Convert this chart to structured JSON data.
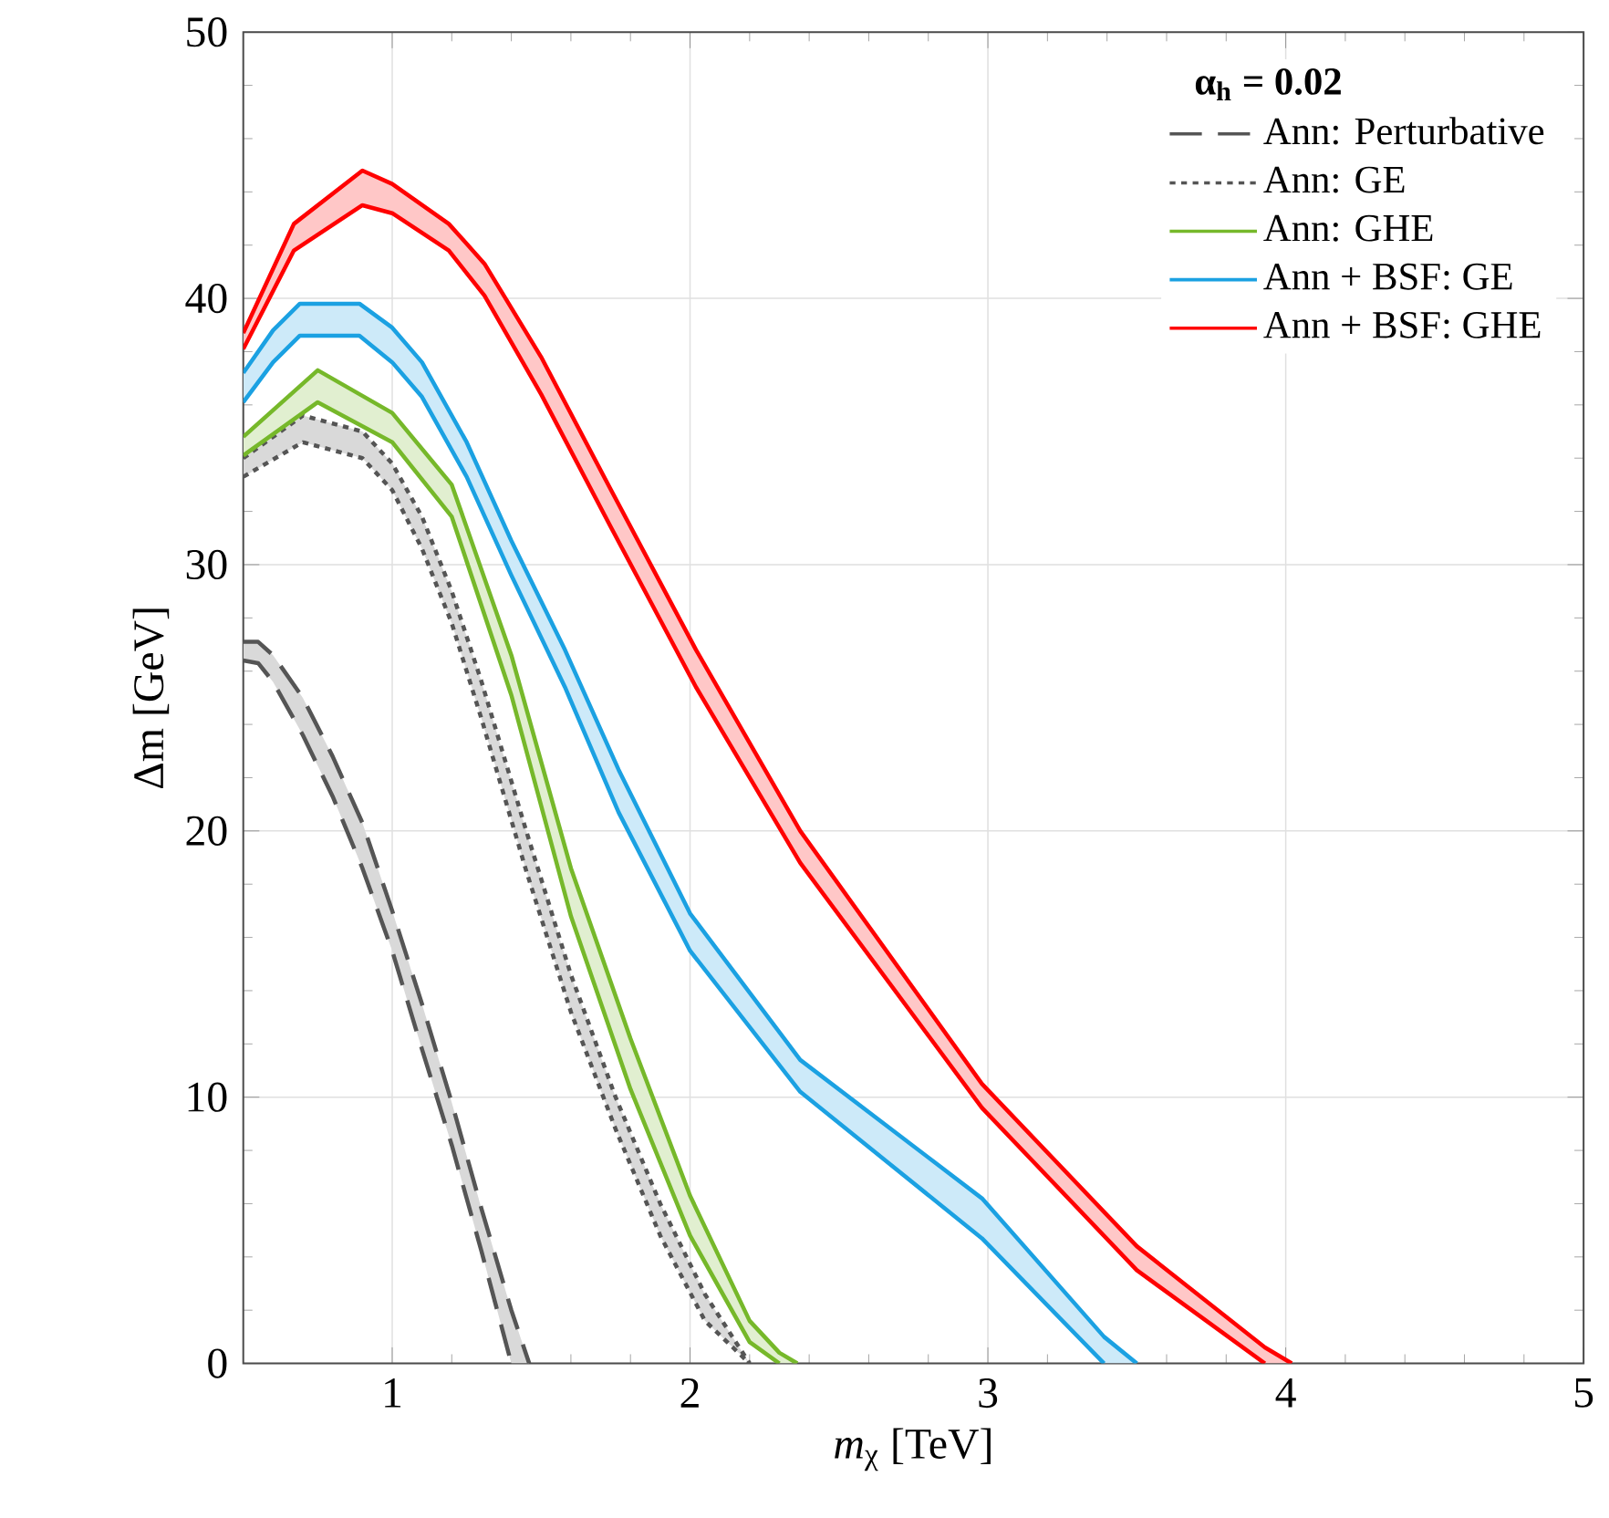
{
  "chart_data": {
    "type": "line",
    "xlabel": "*m*$_{χ}$  [TeV]",
    "ylabel": "Δm  [GeV]",
    "legend_title": "α$_{h}$ = 0.02",
    "xlim": [
      0.5,
      5
    ],
    "ylim": [
      0,
      50
    ],
    "xticks": [
      1,
      2,
      3,
      4,
      5
    ],
    "yticks": [
      0,
      10,
      20,
      30,
      40,
      50
    ],
    "grid": true,
    "legend": "top right",
    "series": [
      {
        "name": "Ann: Perturbative",
        "color": "#555555",
        "line_style": "dashed",
        "x": [
          0.5,
          0.55,
          0.6,
          0.7,
          0.8,
          0.9,
          1.0,
          1.1,
          1.2,
          1.3,
          1.4,
          1.46
        ],
        "values": [
          27.1,
          27.1,
          26.6,
          25.0,
          22.8,
          20.3,
          17.0,
          13.5,
          9.8,
          5.8,
          2.0,
          0
        ],
        "upper": [
          27.1,
          27.1,
          26.6,
          25.0,
          22.8,
          20.3,
          17.0,
          13.5,
          9.8,
          5.8,
          2.0,
          0
        ],
        "lower": [
          26.4,
          26.3,
          25.6,
          23.6,
          21.3,
          18.6,
          15.5,
          11.8,
          8.2,
          4.2,
          0,
          0
        ]
      },
      {
        "color": "#555555",
        "line_style": "dashed",
        "x": [
          0.5,
          0.55,
          0.6,
          0.7,
          0.8,
          0.9,
          1.0,
          1.1,
          1.2,
          1.3,
          1.4
        ],
        "values": [
          26.4,
          26.3,
          25.6,
          23.6,
          21.3,
          18.6,
          15.5,
          11.8,
          8.2,
          4.2,
          0
        ]
      },
      {
        "name": "Ann: GE",
        "color": "#555555",
        "line_style": "dotted",
        "x": [
          0.5,
          0.7,
          0.9,
          1.0,
          1.1,
          1.2,
          1.3,
          1.45,
          1.6,
          1.75,
          1.9,
          2.05,
          2.2
        ],
        "values": [
          34.0,
          35.6,
          35.0,
          33.8,
          31.8,
          29.0,
          25.6,
          20.0,
          14.6,
          10.0,
          6.0,
          2.6,
          0
        ],
        "upper": [
          34.0,
          35.6,
          35.0,
          33.8,
          31.8,
          29.0,
          25.6,
          20.0,
          14.6,
          10.0,
          6.0,
          2.6,
          0
        ],
        "lower": [
          33.3,
          34.6,
          34.0,
          32.8,
          30.6,
          27.8,
          24.2,
          18.5,
          13.2,
          8.8,
          4.8,
          1.6,
          0
        ]
      },
      {
        "color": "#555555",
        "line_style": "dotted",
        "x": [
          0.5,
          0.7,
          0.9,
          1.0,
          1.1,
          1.2,
          1.3,
          1.45,
          1.6,
          1.75,
          1.9,
          2.05,
          2.2
        ],
        "values": [
          33.3,
          34.6,
          34.0,
          32.8,
          30.6,
          27.8,
          24.2,
          18.5,
          13.2,
          8.8,
          4.8,
          1.6,
          0
        ]
      },
      {
        "name": "Ann: GHE",
        "color": "#76b82a",
        "line_style": "solid",
        "x": [
          0.5,
          0.75,
          1.0,
          1.2,
          1.4,
          1.6,
          1.8,
          2.0,
          2.2,
          2.3,
          2.36
        ],
        "values": [
          34.8,
          37.3,
          35.7,
          33.0,
          26.6,
          18.6,
          12.2,
          6.3,
          1.6,
          0.4,
          0
        ],
        "upper": [
          34.8,
          37.3,
          35.7,
          33.0,
          26.6,
          18.6,
          12.2,
          6.3,
          1.6,
          0.4,
          0
        ],
        "lower": [
          34.1,
          36.1,
          34.6,
          31.8,
          25.1,
          16.8,
          10.3,
          4.8,
          0.8,
          0,
          0
        ]
      },
      {
        "color": "#76b82a",
        "line_style": "solid",
        "x": [
          0.5,
          0.75,
          1.0,
          1.2,
          1.4,
          1.6,
          1.8,
          2.0,
          2.2,
          2.3
        ],
        "values": [
          34.1,
          36.1,
          34.6,
          31.8,
          25.1,
          16.8,
          10.3,
          4.8,
          0.8,
          0
        ]
      },
      {
        "name": "Ann + BSF: GE",
        "color": "#1ba1e2",
        "line_style": "solid",
        "x": [
          0.5,
          0.6,
          0.69,
          0.89,
          1.0,
          1.1,
          1.25,
          1.4,
          1.58,
          1.76,
          2.0,
          2.37,
          2.98,
          3.39,
          3.5
        ],
        "values": [
          37.2,
          38.8,
          39.8,
          39.8,
          38.9,
          37.6,
          34.6,
          30.9,
          26.8,
          22.3,
          16.9,
          11.4,
          6.2,
          1.0,
          0
        ],
        "upper": [
          37.2,
          38.8,
          39.8,
          39.8,
          38.9,
          37.6,
          34.6,
          30.9,
          26.8,
          22.3,
          16.9,
          11.4,
          6.2,
          1.0,
          0
        ],
        "lower": [
          36.1,
          37.6,
          38.6,
          38.6,
          37.6,
          36.3,
          33.3,
          29.6,
          25.4,
          20.7,
          15.5,
          10.2,
          4.7,
          0,
          0
        ]
      },
      {
        "color": "#1ba1e2",
        "line_style": "solid",
        "x": [
          0.5,
          0.6,
          0.69,
          0.89,
          1.0,
          1.1,
          1.25,
          1.4,
          1.58,
          1.76,
          2.0,
          2.37,
          2.98,
          3.39
        ],
        "values": [
          36.1,
          37.6,
          38.6,
          38.6,
          37.6,
          36.3,
          33.3,
          29.6,
          25.4,
          20.7,
          15.5,
          10.2,
          4.7,
          0
        ]
      },
      {
        "name": "Ann + BSF: GHE",
        "color": "#ff0000",
        "line_style": "solid",
        "x": [
          0.5,
          0.67,
          0.9,
          1.0,
          1.19,
          1.31,
          1.5,
          1.73,
          2.02,
          2.37,
          2.98,
          3.5,
          3.93,
          4.02
        ],
        "values": [
          38.7,
          42.8,
          44.8,
          44.3,
          42.8,
          41.3,
          37.8,
          32.9,
          26.8,
          20.0,
          10.5,
          4.4,
          0.6,
          0
        ],
        "upper": [
          38.7,
          42.8,
          44.8,
          44.3,
          42.8,
          41.3,
          37.8,
          32.9,
          26.8,
          20.0,
          10.5,
          4.4,
          0.6,
          0
        ],
        "lower": [
          38.1,
          41.8,
          43.5,
          43.2,
          41.8,
          40.1,
          36.4,
          31.5,
          25.4,
          18.8,
          9.6,
          3.5,
          0,
          0
        ]
      },
      {
        "color": "#ff0000",
        "line_style": "solid",
        "x": [
          0.5,
          0.67,
          0.9,
          1.0,
          1.19,
          1.31,
          1.5,
          1.73,
          2.02,
          2.37,
          2.98,
          3.5,
          3.93
        ],
        "values": [
          38.1,
          41.8,
          43.5,
          43.2,
          41.8,
          40.1,
          36.4,
          31.5,
          25.4,
          18.8,
          9.6,
          3.5,
          0
        ]
      }
    ]
  }
}
